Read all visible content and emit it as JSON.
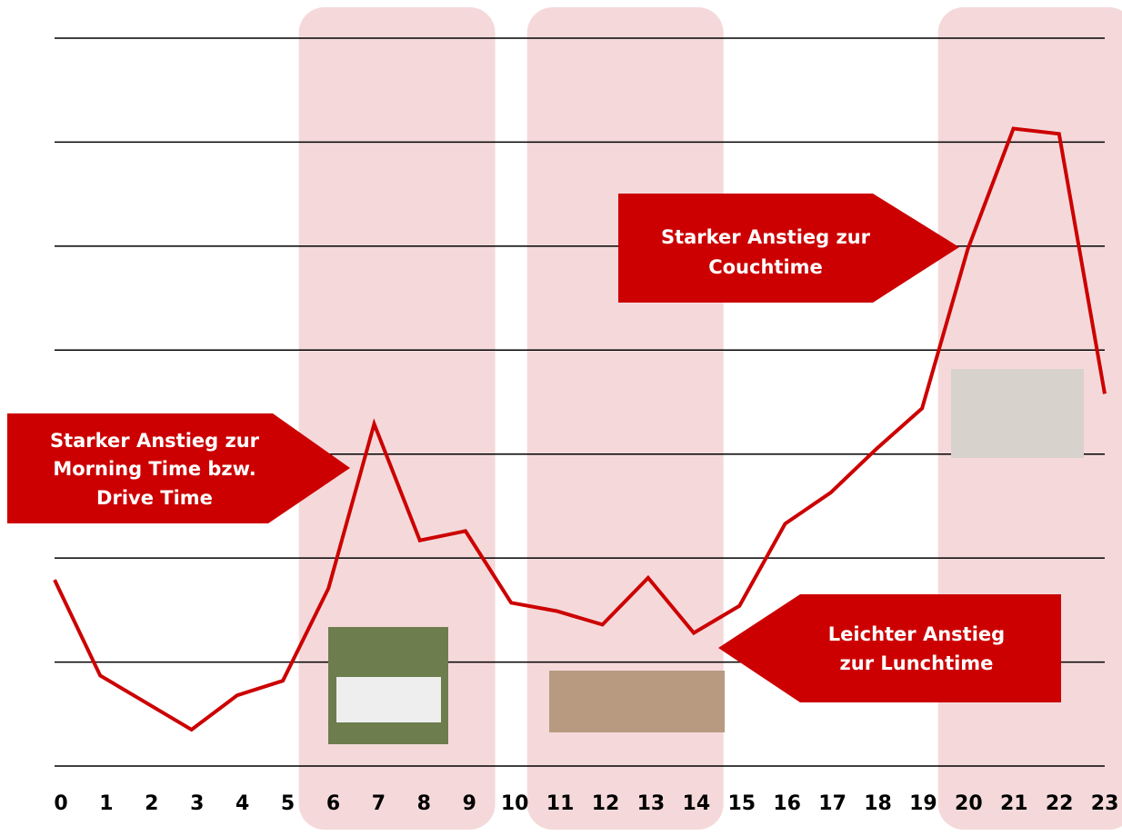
{
  "chart_data": {
    "type": "line",
    "categories": [
      "0",
      "1",
      "2",
      "3",
      "4",
      "5",
      "6",
      "7",
      "8",
      "9",
      "10",
      "11",
      "12",
      "13",
      "14",
      "15",
      "16",
      "17",
      "18",
      "19",
      "20",
      "21",
      "22",
      "23"
    ],
    "values": [
      1.79,
      0.87,
      0.61,
      0.35,
      0.68,
      0.82,
      1.71,
      3.29,
      2.17,
      2.26,
      1.57,
      1.49,
      1.36,
      1.81,
      1.28,
      1.54,
      2.33,
      2.63,
      3.05,
      3.44,
      4.97,
      6.13,
      6.08,
      3.58
    ],
    "color": "#cc0000",
    "ylim": [
      0,
      7
    ],
    "yticks": [
      0,
      1,
      2,
      3,
      4,
      5,
      6,
      7
    ],
    "grid": true,
    "show_ytick_labels": false,
    "highlight_ranges": [
      [
        6,
        9
      ],
      [
        11,
        14
      ],
      [
        20,
        23
      ]
    ],
    "highlight_color": "#f5d9da",
    "annotations": [
      [
        "Starker Anstieg zur",
        "Morning Time bzw.",
        "Drive Time"
      ],
      [
        "Starker Anstieg zur",
        "Couchtime"
      ],
      [
        "Leichter Anstieg",
        "zur Lunchtime"
      ]
    ]
  }
}
